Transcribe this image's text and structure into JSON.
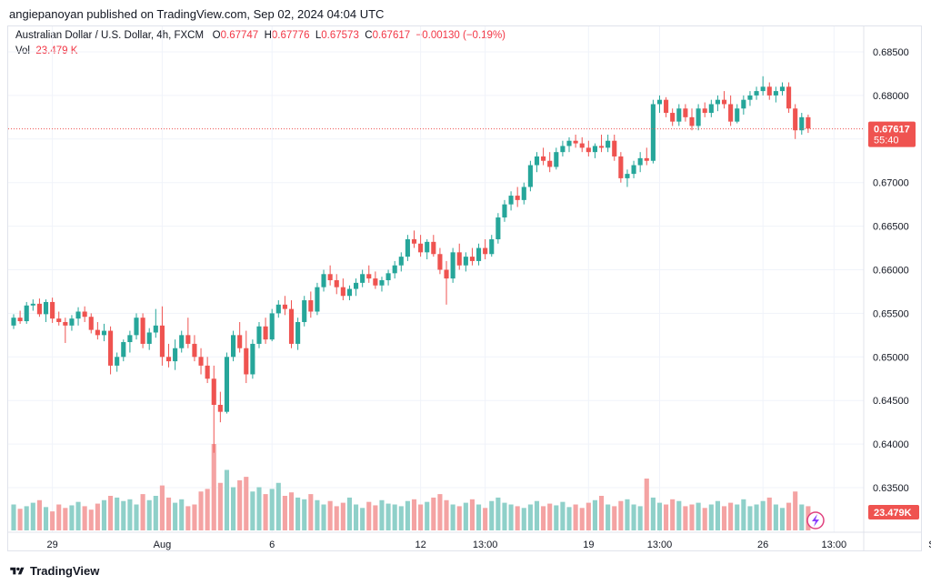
{
  "header": {
    "publisher_line": "angiepanoyan published on TradingView.com, Sep 02, 2024 04:04 UTC"
  },
  "legend": {
    "symbol": "Australian Dollar / U.S. Dollar, 4h, FXCM",
    "o_label": "O",
    "o_value": "0.67747",
    "h_label": "H",
    "h_value": "0.67776",
    "l_label": "L",
    "l_value": "0.67573",
    "c_label": "C",
    "c_value": "0.67617",
    "change": "−0.00130 (−0.19%)",
    "vol_label": "Vol",
    "vol_value": "23.479 K"
  },
  "footer": {
    "brand": "TradingView"
  },
  "colors": {
    "up": "#26a69a",
    "down": "#ef5350",
    "vol_up": "#8fd0c9",
    "vol_down": "#f4a3a3",
    "grid": "#f0f3fa"
  },
  "chart_data": {
    "type": "candlestick",
    "symbol": "AUDUSD",
    "interval": "4h",
    "y_ticks": [
      "0.68500",
      "0.68000",
      "0.67500",
      "0.67000",
      "0.66500",
      "0.66000",
      "0.65500",
      "0.65000",
      "0.64500",
      "0.64000",
      "0.63500"
    ],
    "y_tick_values": [
      0.685,
      0.68,
      0.675,
      0.67,
      0.665,
      0.66,
      0.655,
      0.65,
      0.645,
      0.64,
      0.635
    ],
    "x_ticks": [
      "29",
      "Aug",
      "6",
      "12",
      "13:00",
      "19",
      "13:00",
      "26",
      "13:00",
      "Sep"
    ],
    "x_tick_index": [
      6,
      23,
      40,
      63,
      73,
      89,
      100,
      116,
      127,
      143
    ],
    "last_price_label": "0.67617",
    "countdown_label": "55:40",
    "last_price": 0.67617,
    "volume_label": "23.479K",
    "candles": [
      [
        0.6536,
        0.6549,
        0.6532,
        0.6545
      ],
      [
        0.6545,
        0.6553,
        0.6538,
        0.6541
      ],
      [
        0.6541,
        0.6563,
        0.6538,
        0.6559
      ],
      [
        0.6559,
        0.6566,
        0.6553,
        0.6561
      ],
      [
        0.6561,
        0.6567,
        0.6546,
        0.6549
      ],
      [
        0.6549,
        0.6566,
        0.654,
        0.6563
      ],
      [
        0.6563,
        0.6568,
        0.6539,
        0.6544
      ],
      [
        0.6544,
        0.6552,
        0.6536,
        0.654
      ],
      [
        0.654,
        0.6545,
        0.6516,
        0.6536
      ],
      [
        0.6536,
        0.6548,
        0.653,
        0.6544
      ],
      [
        0.6544,
        0.6557,
        0.6536,
        0.6552
      ],
      [
        0.6552,
        0.6558,
        0.654,
        0.6546
      ],
      [
        0.6546,
        0.655,
        0.6527,
        0.6531
      ],
      [
        0.6531,
        0.654,
        0.652,
        0.6525
      ],
      [
        0.6525,
        0.6538,
        0.6518,
        0.653
      ],
      [
        0.653,
        0.6535,
        0.648,
        0.649
      ],
      [
        0.649,
        0.6505,
        0.6483,
        0.65
      ],
      [
        0.65,
        0.652,
        0.6495,
        0.6517
      ],
      [
        0.6517,
        0.653,
        0.6505,
        0.6525
      ],
      [
        0.6525,
        0.655,
        0.652,
        0.6545
      ],
      [
        0.6545,
        0.655,
        0.651,
        0.6515
      ],
      [
        0.6515,
        0.6533,
        0.6508,
        0.6528
      ],
      [
        0.6528,
        0.6555,
        0.6522,
        0.6536
      ],
      [
        0.6536,
        0.6558,
        0.649,
        0.65
      ],
      [
        0.65,
        0.6515,
        0.6488,
        0.6495
      ],
      [
        0.6495,
        0.652,
        0.6485,
        0.651
      ],
      [
        0.651,
        0.653,
        0.6505,
        0.6525
      ],
      [
        0.6525,
        0.6545,
        0.651,
        0.6515
      ],
      [
        0.6515,
        0.6525,
        0.6495,
        0.65
      ],
      [
        0.65,
        0.651,
        0.648,
        0.649
      ],
      [
        0.649,
        0.65,
        0.647,
        0.6475
      ],
      [
        0.6475,
        0.649,
        0.639,
        0.6445
      ],
      [
        0.6445,
        0.646,
        0.6425,
        0.6437
      ],
      [
        0.6437,
        0.6505,
        0.6435,
        0.65
      ],
      [
        0.65,
        0.653,
        0.6495,
        0.6525
      ],
      [
        0.6525,
        0.654,
        0.6505,
        0.651
      ],
      [
        0.651,
        0.653,
        0.647,
        0.648
      ],
      [
        0.648,
        0.652,
        0.6475,
        0.6515
      ],
      [
        0.6515,
        0.654,
        0.651,
        0.6535
      ],
      [
        0.6535,
        0.6545,
        0.6515,
        0.652
      ],
      [
        0.652,
        0.6555,
        0.6518,
        0.655
      ],
      [
        0.655,
        0.6565,
        0.6545,
        0.656
      ],
      [
        0.656,
        0.657,
        0.6548,
        0.6555
      ],
      [
        0.6555,
        0.6565,
        0.651,
        0.6515
      ],
      [
        0.6515,
        0.6545,
        0.6508,
        0.654
      ],
      [
        0.654,
        0.657,
        0.6535,
        0.6565
      ],
      [
        0.6565,
        0.6575,
        0.6545,
        0.6552
      ],
      [
        0.6552,
        0.6585,
        0.6548,
        0.658
      ],
      [
        0.658,
        0.66,
        0.6575,
        0.6595
      ],
      [
        0.6595,
        0.6605,
        0.6582,
        0.6588
      ],
      [
        0.6588,
        0.6595,
        0.6572,
        0.658
      ],
      [
        0.658,
        0.659,
        0.6565,
        0.657
      ],
      [
        0.657,
        0.6582,
        0.6565,
        0.6578
      ],
      [
        0.6578,
        0.659,
        0.657,
        0.6585
      ],
      [
        0.6585,
        0.66,
        0.658,
        0.6595
      ],
      [
        0.6595,
        0.6605,
        0.6585,
        0.659
      ],
      [
        0.659,
        0.6598,
        0.6578,
        0.6582
      ],
      [
        0.6582,
        0.6592,
        0.6575,
        0.6588
      ],
      [
        0.6588,
        0.66,
        0.6582,
        0.6596
      ],
      [
        0.6596,
        0.661,
        0.659,
        0.6605
      ],
      [
        0.6605,
        0.662,
        0.6598,
        0.6615
      ],
      [
        0.6615,
        0.664,
        0.661,
        0.6635
      ],
      [
        0.6635,
        0.6645,
        0.6625,
        0.663
      ],
      [
        0.663,
        0.664,
        0.6615,
        0.662
      ],
      [
        0.662,
        0.6635,
        0.6612,
        0.6632
      ],
      [
        0.6632,
        0.664,
        0.6615,
        0.6618
      ],
      [
        0.6618,
        0.6625,
        0.6595,
        0.66
      ],
      [
        0.66,
        0.661,
        0.656,
        0.659
      ],
      [
        0.659,
        0.6625,
        0.6585,
        0.662
      ],
      [
        0.662,
        0.663,
        0.66,
        0.6605
      ],
      [
        0.6605,
        0.662,
        0.6598,
        0.6615
      ],
      [
        0.6615,
        0.6625,
        0.6605,
        0.661
      ],
      [
        0.661,
        0.663,
        0.6605,
        0.6625
      ],
      [
        0.6625,
        0.6635,
        0.6612,
        0.6618
      ],
      [
        0.6618,
        0.664,
        0.6615,
        0.6635
      ],
      [
        0.6635,
        0.6665,
        0.663,
        0.666
      ],
      [
        0.666,
        0.668,
        0.6655,
        0.6675
      ],
      [
        0.6675,
        0.669,
        0.6668,
        0.6685
      ],
      [
        0.6685,
        0.6695,
        0.6672,
        0.668
      ],
      [
        0.668,
        0.67,
        0.6675,
        0.6695
      ],
      [
        0.6695,
        0.6725,
        0.669,
        0.672
      ],
      [
        0.672,
        0.6735,
        0.6712,
        0.673
      ],
      [
        0.673,
        0.674,
        0.672,
        0.6725
      ],
      [
        0.6725,
        0.6735,
        0.6712,
        0.6718
      ],
      [
        0.6718,
        0.674,
        0.6715,
        0.6735
      ],
      [
        0.6735,
        0.6748,
        0.673,
        0.6742
      ],
      [
        0.6742,
        0.6752,
        0.6735,
        0.6748
      ],
      [
        0.6748,
        0.6755,
        0.674,
        0.6745
      ],
      [
        0.6745,
        0.6752,
        0.6735,
        0.674
      ],
      [
        0.674,
        0.6748,
        0.673,
        0.6735
      ],
      [
        0.6735,
        0.6745,
        0.6728,
        0.6742
      ],
      [
        0.6742,
        0.6755,
        0.6735,
        0.674
      ],
      [
        0.674,
        0.6755,
        0.6735,
        0.6748
      ],
      [
        0.6748,
        0.6755,
        0.6725,
        0.673
      ],
      [
        0.673,
        0.6735,
        0.67,
        0.6705
      ],
      [
        0.6705,
        0.6715,
        0.6695,
        0.671
      ],
      [
        0.671,
        0.6725,
        0.6705,
        0.672
      ],
      [
        0.672,
        0.6735,
        0.6712,
        0.6728
      ],
      [
        0.6728,
        0.674,
        0.672,
        0.6725
      ],
      [
        0.6725,
        0.6795,
        0.6722,
        0.679
      ],
      [
        0.679,
        0.68,
        0.678,
        0.6795
      ],
      [
        0.6795,
        0.6798,
        0.6775,
        0.678
      ],
      [
        0.678,
        0.6785,
        0.6765,
        0.677
      ],
      [
        0.677,
        0.679,
        0.6765,
        0.6785
      ],
      [
        0.6785,
        0.679,
        0.677,
        0.6775
      ],
      [
        0.6775,
        0.6785,
        0.676,
        0.6765
      ],
      [
        0.6765,
        0.679,
        0.676,
        0.6785
      ],
      [
        0.6785,
        0.6792,
        0.6775,
        0.678
      ],
      [
        0.678,
        0.6795,
        0.6775,
        0.679
      ],
      [
        0.679,
        0.68,
        0.6782,
        0.6795
      ],
      [
        0.6795,
        0.6805,
        0.6785,
        0.679
      ],
      [
        0.679,
        0.68,
        0.6765,
        0.677
      ],
      [
        0.677,
        0.679,
        0.6768,
        0.6785
      ],
      [
        0.6785,
        0.68,
        0.6778,
        0.6795
      ],
      [
        0.6795,
        0.6805,
        0.6788,
        0.68
      ],
      [
        0.68,
        0.681,
        0.6795,
        0.6805
      ],
      [
        0.6805,
        0.6822,
        0.68,
        0.681
      ],
      [
        0.681,
        0.6815,
        0.6795,
        0.68
      ],
      [
        0.68,
        0.681,
        0.6792,
        0.6805
      ],
      [
        0.6805,
        0.6815,
        0.68,
        0.681
      ],
      [
        0.681,
        0.6815,
        0.678,
        0.6785
      ],
      [
        0.6785,
        0.679,
        0.675,
        0.676
      ],
      [
        0.676,
        0.678,
        0.6755,
        0.6775
      ],
      [
        0.6775,
        0.6778,
        0.6757,
        0.6762
      ]
    ],
    "volumes": [
      0.3,
      0.25,
      0.28,
      0.32,
      0.35,
      0.27,
      0.22,
      0.3,
      0.26,
      0.29,
      0.33,
      0.28,
      0.24,
      0.31,
      0.35,
      0.4,
      0.38,
      0.34,
      0.36,
      0.3,
      0.42,
      0.35,
      0.4,
      0.52,
      0.38,
      0.32,
      0.36,
      0.28,
      0.3,
      0.45,
      0.48,
      1.0,
      0.55,
      0.7,
      0.5,
      0.58,
      0.62,
      0.45,
      0.5,
      0.42,
      0.48,
      0.55,
      0.4,
      0.44,
      0.38,
      0.36,
      0.42,
      0.35,
      0.3,
      0.34,
      0.28,
      0.32,
      0.38,
      0.3,
      0.26,
      0.33,
      0.29,
      0.35,
      0.31,
      0.3,
      0.28,
      0.34,
      0.36,
      0.3,
      0.33,
      0.38,
      0.42,
      0.35,
      0.3,
      0.28,
      0.32,
      0.36,
      0.3,
      0.26,
      0.34,
      0.38,
      0.32,
      0.3,
      0.28,
      0.26,
      0.3,
      0.34,
      0.28,
      0.31,
      0.29,
      0.33,
      0.27,
      0.3,
      0.26,
      0.32,
      0.35,
      0.4,
      0.3,
      0.28,
      0.34,
      0.36,
      0.3,
      0.28,
      0.6,
      0.38,
      0.32,
      0.3,
      0.36,
      0.34,
      0.28,
      0.3,
      0.32,
      0.26,
      0.3,
      0.34,
      0.28,
      0.32,
      0.3,
      0.36,
      0.28,
      0.3,
      0.34,
      0.38,
      0.3,
      0.26,
      0.32,
      0.45,
      0.3,
      0.28
    ],
    "volume_up_flags": []
  }
}
